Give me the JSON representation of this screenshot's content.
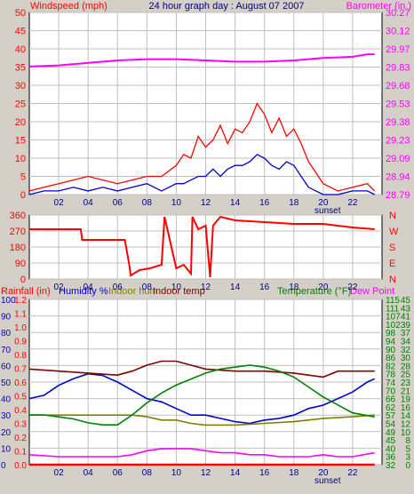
{
  "header": {
    "windspeed_label": "Windspeed (mph)",
    "title": "24 hour graph day : August 07 2007",
    "barometer_label": "Barometer (in.)"
  },
  "colors": {
    "background": "#d4d0c8",
    "plot_bg": "#ffffff",
    "grid": "#c0c0c0",
    "wind_speed": "#ff0000",
    "wind_gust_avg": "#0000cc",
    "barometer": "#ff00ff",
    "wind_dir": "#ff0000",
    "humidity": "#0000cc",
    "indoor_hum": "#808000",
    "indoor_temp": "#800000",
    "temperature": "#008000",
    "dew_point": "#ff00ff",
    "rainfall": "#ff0000"
  },
  "x_axis": {
    "ticks": [
      "02",
      "04",
      "06",
      "08",
      "10",
      "12",
      "14",
      "16",
      "18",
      "20",
      "22"
    ],
    "tick_hours": [
      2,
      4,
      6,
      8,
      10,
      12,
      14,
      16,
      18,
      20,
      22
    ],
    "range": [
      0,
      24
    ],
    "sunset_label": "sunset",
    "sunset_hour": 20.3
  },
  "panel_labels": {
    "rainfall": "Rainfall (in)",
    "humidity": "Humidity %",
    "indoor_hum": "Indoor hum",
    "indoor_temp": "Indoor temp",
    "temperature": "Temperature (°F)",
    "dew_point": "Dew Point"
  },
  "chart_data": [
    {
      "type": "line",
      "panel": "wind",
      "ylim_left": [
        0,
        50
      ],
      "yticks_left": [
        "0",
        "5",
        "10",
        "15",
        "20",
        "25",
        "30",
        "35",
        "40",
        "45",
        "50"
      ],
      "ylim_right": [
        28.79,
        30.27
      ],
      "yticks_right": [
        "28.79",
        "28.94",
        "29.09",
        "29.23",
        "29.38",
        "29.53",
        "29.68",
        "29.83",
        "29.97",
        "30.12",
        "30.27"
      ],
      "series": [
        {
          "name": "Windspeed (mph)",
          "axis": "left",
          "style": "wind_speed",
          "x": [
            0,
            1,
            2,
            3,
            4,
            5,
            6,
            7,
            8,
            9,
            10,
            10.5,
            11,
            11.5,
            12,
            12.5,
            13,
            13.5,
            14,
            14.5,
            15,
            15.5,
            16,
            16.5,
            17,
            17.5,
            18,
            18.5,
            19,
            19.5,
            20,
            21,
            22,
            23,
            23.5
          ],
          "y": [
            1,
            2,
            3,
            4,
            5,
            4,
            3,
            4,
            5,
            5,
            8,
            11,
            10,
            16,
            13,
            15,
            19,
            14,
            18,
            17,
            20,
            25,
            22,
            17,
            21,
            16,
            18,
            14,
            9,
            6,
            3,
            1,
            2,
            3,
            1
          ]
        },
        {
          "name": "Gust",
          "axis": "left",
          "style": "wind_gust_avg",
          "x": [
            0,
            1,
            2,
            3,
            4,
            5,
            6,
            7,
            8,
            9,
            10,
            10.5,
            11,
            11.5,
            12,
            12.5,
            13,
            13.5,
            14,
            14.5,
            15,
            15.5,
            16,
            16.5,
            17,
            17.5,
            18,
            18.5,
            19,
            19.5,
            20,
            21,
            22,
            23,
            23.5
          ],
          "y": [
            0,
            1,
            1,
            2,
            1,
            2,
            1,
            2,
            3,
            1,
            3,
            3,
            4,
            5,
            5,
            7,
            5,
            7,
            8,
            8,
            9,
            11,
            10,
            8,
            7,
            9,
            8,
            5,
            2,
            1,
            0,
            0,
            1,
            1,
            0
          ]
        },
        {
          "name": "Barometer (in.)",
          "axis": "right",
          "style": "barometer",
          "x": [
            0,
            2,
            4,
            6,
            8,
            10,
            12,
            14,
            16,
            18,
            20,
            22,
            23,
            23.5
          ],
          "y": [
            29.83,
            29.84,
            29.86,
            29.88,
            29.89,
            29.89,
            29.88,
            29.87,
            29.87,
            29.88,
            29.9,
            29.91,
            29.93,
            29.93
          ]
        }
      ]
    },
    {
      "type": "line",
      "panel": "direction",
      "ylim_left": [
        0,
        360
      ],
      "yticks_left": [
        "0",
        "90",
        "180",
        "270",
        "360"
      ],
      "yticks_right": [
        "N",
        "E",
        "S",
        "W",
        "N"
      ],
      "series": [
        {
          "name": "Wind direction",
          "style": "wind_dir",
          "x": [
            0,
            3.5,
            3.6,
            6.5,
            6.8,
            6.9,
            7.5,
            8.2,
            9.0,
            9.2,
            10,
            10.5,
            11.0,
            11.1,
            11.5,
            12,
            12.3,
            12.5,
            13,
            14,
            16,
            18,
            20,
            22,
            23.5
          ],
          "y": [
            280,
            280,
            220,
            220,
            80,
            20,
            50,
            60,
            80,
            350,
            60,
            80,
            30,
            350,
            280,
            300,
            10,
            300,
            350,
            330,
            320,
            310,
            310,
            290,
            280
          ]
        }
      ]
    },
    {
      "type": "line",
      "panel": "temperature",
      "yticks_rain": [
        "0.0",
        "0.1",
        "0.2",
        "0.3",
        "0.4",
        "0.5",
        "0.6",
        "0.7",
        "0.8",
        "0.9",
        "1.0",
        "1.1",
        "1.2"
      ],
      "yticks_hum": [
        "0",
        "10",
        "20",
        "30",
        "40",
        "50",
        "60",
        "70",
        "80",
        "90",
        "100"
      ],
      "yticks_temp_f": [
        "32",
        "36",
        "40",
        "45",
        "49",
        "54",
        "57",
        "62",
        "66",
        "70",
        "74",
        "78",
        "82",
        "86",
        "90",
        "94",
        "98",
        "102",
        "107",
        "111",
        "115"
      ],
      "yticks_temp_c": [
        "0",
        "3",
        "5",
        "8",
        "10",
        "12",
        "14",
        "16",
        "19",
        "21",
        "23",
        "25",
        "28",
        "30",
        "32",
        "34",
        "37",
        "39",
        "41",
        "43",
        "45"
      ],
      "series": [
        {
          "name": "Humidity %",
          "style": "humidity",
          "x": [
            0,
            1,
            2,
            3,
            4,
            5,
            6,
            7,
            8,
            9,
            10,
            11,
            12,
            13,
            14,
            15,
            16,
            17,
            18,
            19,
            20,
            21,
            22,
            23,
            23.5
          ],
          "y": [
            40,
            42,
            48,
            52,
            55,
            54,
            50,
            45,
            40,
            38,
            34,
            30,
            30,
            28,
            26,
            25,
            27,
            28,
            30,
            34,
            36,
            40,
            44,
            50,
            52
          ]
        },
        {
          "name": "Indoor hum",
          "style": "indoor_hum",
          "x": [
            0,
            2,
            4,
            6,
            7,
            8,
            9,
            10,
            11,
            12,
            14,
            16,
            18,
            20,
            22,
            23.5
          ],
          "y": [
            30,
            30,
            30,
            30,
            30,
            29,
            27,
            27,
            25,
            24,
            24,
            25,
            26,
            28,
            29,
            30
          ]
        },
        {
          "name": "Indoor temp",
          "style": "indoor_temp",
          "x": [
            0,
            2,
            4,
            6,
            7,
            8,
            9,
            10,
            11,
            12,
            14,
            16,
            18,
            19,
            20,
            21,
            22,
            23.5
          ],
          "y": [
            80,
            79,
            78,
            77,
            79,
            82,
            84,
            84,
            82,
            80,
            79,
            79,
            78,
            77,
            76,
            79,
            79,
            79
          ]
        },
        {
          "name": "Temperature (°F)",
          "style": "temperature",
          "x": [
            0,
            1,
            2,
            3,
            4,
            5,
            6,
            7,
            8,
            9,
            10,
            11,
            12,
            13,
            14,
            15,
            16,
            17,
            18,
            19,
            20,
            21,
            22,
            23.5
          ],
          "y": [
            57,
            57,
            56,
            55,
            53,
            52,
            52,
            57,
            63,
            68,
            72,
            75,
            78,
            80,
            81,
            82,
            81,
            79,
            76,
            71,
            66,
            62,
            58,
            56
          ]
        },
        {
          "name": "Dew Point",
          "style": "dew_point",
          "x": [
            0,
            2,
            4,
            6,
            7,
            8,
            9,
            10,
            11,
            12,
            13,
            14,
            15,
            16,
            17,
            18,
            19,
            20,
            21,
            22,
            23.5
          ],
          "y": [
            37,
            36,
            36,
            36,
            37,
            39,
            40,
            40,
            40,
            39,
            38,
            38,
            37,
            37,
            36,
            36,
            36,
            37,
            36,
            36,
            38
          ]
        },
        {
          "name": "Rainfall (in)",
          "style": "rainfall",
          "x": [
            0,
            23.5
          ],
          "y": [
            0,
            0
          ]
        }
      ]
    }
  ]
}
